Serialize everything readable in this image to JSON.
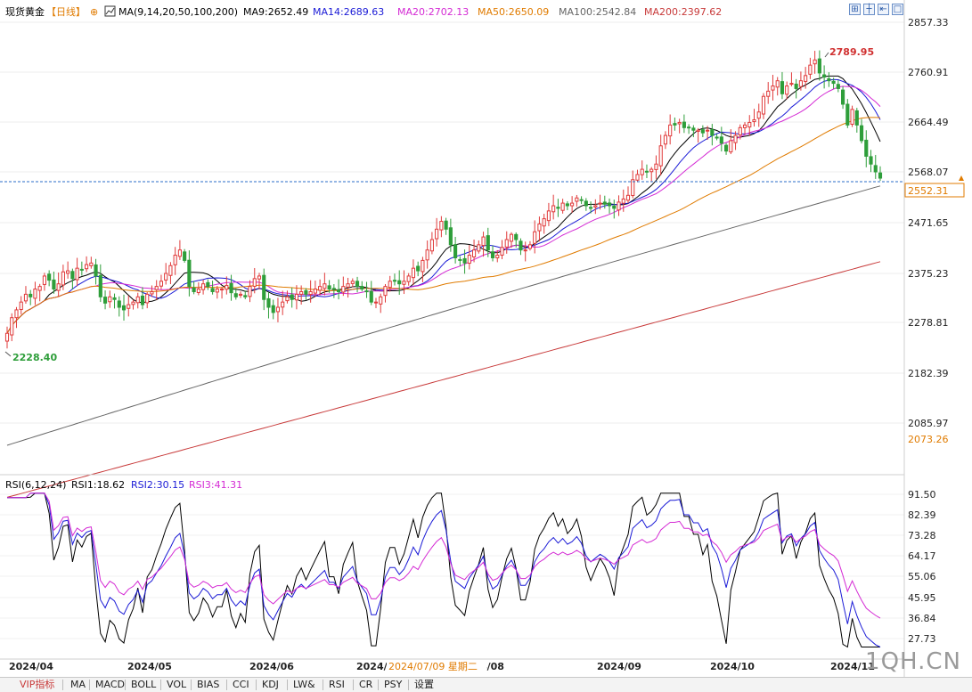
{
  "header": {
    "title": "现货黄金",
    "period": "【日线】",
    "ma_prefix": "MA(9,14,20,50,100,200)",
    "ma_items": [
      {
        "label": "MA9:2652.49",
        "color": "#000000"
      },
      {
        "label": "MA14:2689.63",
        "color": "#1a1ad6"
      },
      {
        "label": "MA20:2702.13",
        "color": "#d42ad4"
      },
      {
        "label": "MA50:2650.09",
        "color": "#e07b00"
      },
      {
        "label": "MA100:2542.84",
        "color": "#666666"
      },
      {
        "label": "MA200:2397.62",
        "color": "#c83a3a"
      }
    ]
  },
  "rsi_header": {
    "label": "RSI(6,12,24)",
    "items": [
      {
        "label": "RSI1:18.62",
        "color": "#000000"
      },
      {
        "label": "RSI2:30.15",
        "color": "#1a1ad6"
      },
      {
        "label": "RSI3:41.31",
        "color": "#d42ad4"
      }
    ]
  },
  "chart_data": [
    {
      "type": "candlestick",
      "title": "现货黄金",
      "period": "日线",
      "ylim": [
        2040,
        2870
      ],
      "y_ticks": [
        "2857.33",
        "2760.91",
        "2664.49",
        "2568.07",
        "2471.65",
        "2375.23",
        "2278.81",
        "2182.39",
        "2085.97"
      ],
      "x_ticks": [
        "2024/04",
        "2024/05",
        "2024/06",
        "2024/0",
        "2024/08",
        "2024/09",
        "2024/10",
        "2024/11"
      ],
      "current_price": "2552.31",
      "lowest_visible": "2073.26",
      "annotations": {
        "high": "2789.95",
        "low": "2228.40"
      },
      "close_series": [
        2260,
        2290,
        2305,
        2320,
        2335,
        2330,
        2345,
        2350,
        2370,
        2362,
        2345,
        2355,
        2378,
        2380,
        2365,
        2385,
        2382,
        2392,
        2395,
        2370,
        2330,
        2318,
        2330,
        2325,
        2310,
        2305,
        2315,
        2320,
        2330,
        2315,
        2335,
        2340,
        2350,
        2360,
        2375,
        2390,
        2410,
        2420,
        2400,
        2350,
        2340,
        2345,
        2355,
        2350,
        2340,
        2345,
        2345,
        2352,
        2338,
        2330,
        2335,
        2330,
        2350,
        2365,
        2370,
        2325,
        2310,
        2300,
        2310,
        2320,
        2330,
        2325,
        2335,
        2340,
        2335,
        2340,
        2345,
        2350,
        2355,
        2345,
        2345,
        2340,
        2350,
        2355,
        2360,
        2350,
        2345,
        2340,
        2320,
        2320,
        2330,
        2350,
        2360,
        2360,
        2355,
        2360,
        2370,
        2385,
        2380,
        2400,
        2420,
        2440,
        2460,
        2475,
        2460,
        2430,
        2405,
        2400,
        2395,
        2410,
        2420,
        2430,
        2445,
        2420,
        2405,
        2410,
        2425,
        2440,
        2450,
        2440,
        2420,
        2420,
        2430,
        2455,
        2470,
        2480,
        2495,
        2505,
        2500,
        2510,
        2505,
        2510,
        2520,
        2515,
        2505,
        2500,
        2505,
        2510,
        2508,
        2505,
        2500,
        2512,
        2518,
        2525,
        2555,
        2565,
        2575,
        2570,
        2575,
        2585,
        2620,
        2640,
        2660,
        2660,
        2665,
        2655,
        2655,
        2650,
        2650,
        2645,
        2650,
        2640,
        2635,
        2625,
        2610,
        2630,
        2640,
        2655,
        2660,
        2665,
        2670,
        2685,
        2715,
        2725,
        2735,
        2745,
        2720,
        2735,
        2740,
        2730,
        2745,
        2755,
        2775,
        2785,
        2760,
        2752,
        2745,
        2740,
        2730,
        2700,
        2660,
        2690,
        2660,
        2630,
        2600,
        2585,
        2570,
        2558
      ],
      "series": [
        {
          "name": "MA9",
          "color": "#000000",
          "last": "2652.49"
        },
        {
          "name": "MA14",
          "color": "#1a1ad6",
          "last": "2689.63"
        },
        {
          "name": "MA20",
          "color": "#d42ad4",
          "last": "2702.13"
        },
        {
          "name": "MA50",
          "color": "#e07b00",
          "last": "2650.09"
        },
        {
          "name": "MA100",
          "color": "#666666",
          "last": "2542.84"
        },
        {
          "name": "MA200",
          "color": "#c83a3a",
          "last": "2397.62"
        }
      ]
    },
    {
      "type": "line",
      "title": "RSI(6,12,24)",
      "ylim": [
        22,
        96
      ],
      "y_ticks": [
        "91.50",
        "82.39",
        "73.28",
        "64.17",
        "55.06",
        "45.95",
        "36.84",
        "27.73"
      ],
      "series": [
        {
          "name": "RSI1",
          "color": "#000000",
          "last": "18.62"
        },
        {
          "name": "RSI2",
          "color": "#1a1ad6",
          "last": "30.15"
        },
        {
          "name": "RSI3",
          "color": "#d42ad4",
          "last": "41.31"
        }
      ]
    }
  ],
  "x_axis": {
    "labels": [
      "2024/04",
      "2024/05",
      "2024/06",
      "2024/0",
      "2024/08",
      "2024/09",
      "2024/10",
      "2024/11"
    ],
    "cursor_label": "2024/07/09 星期二"
  },
  "price_axis": {
    "labels": [
      "2857.33",
      "2760.91",
      "2664.49",
      "2568.07",
      "2471.65",
      "2375.23",
      "2278.81",
      "2182.39",
      "2085.97"
    ],
    "current": "2552.31",
    "min_label": "2073.26"
  },
  "rsi_axis": {
    "labels": [
      "91.50",
      "82.39",
      "73.28",
      "64.17",
      "55.06",
      "45.95",
      "36.84",
      "27.73"
    ]
  },
  "toolbar": {
    "items": [
      "VIP指标",
      "MA",
      "MACD",
      "BOLL",
      "VOL",
      "BIAS",
      "CCI",
      "KDJ",
      "LW&",
      "RSI",
      "CR",
      "PSY",
      "设置"
    ]
  },
  "watermark": "1QH.CN",
  "colors": {
    "up": "#e03a3a",
    "down": "#2e9e3a",
    "grid": "#e0e0e0",
    "current_line": "#2a6cc8",
    "price_box": "#e07b00"
  }
}
